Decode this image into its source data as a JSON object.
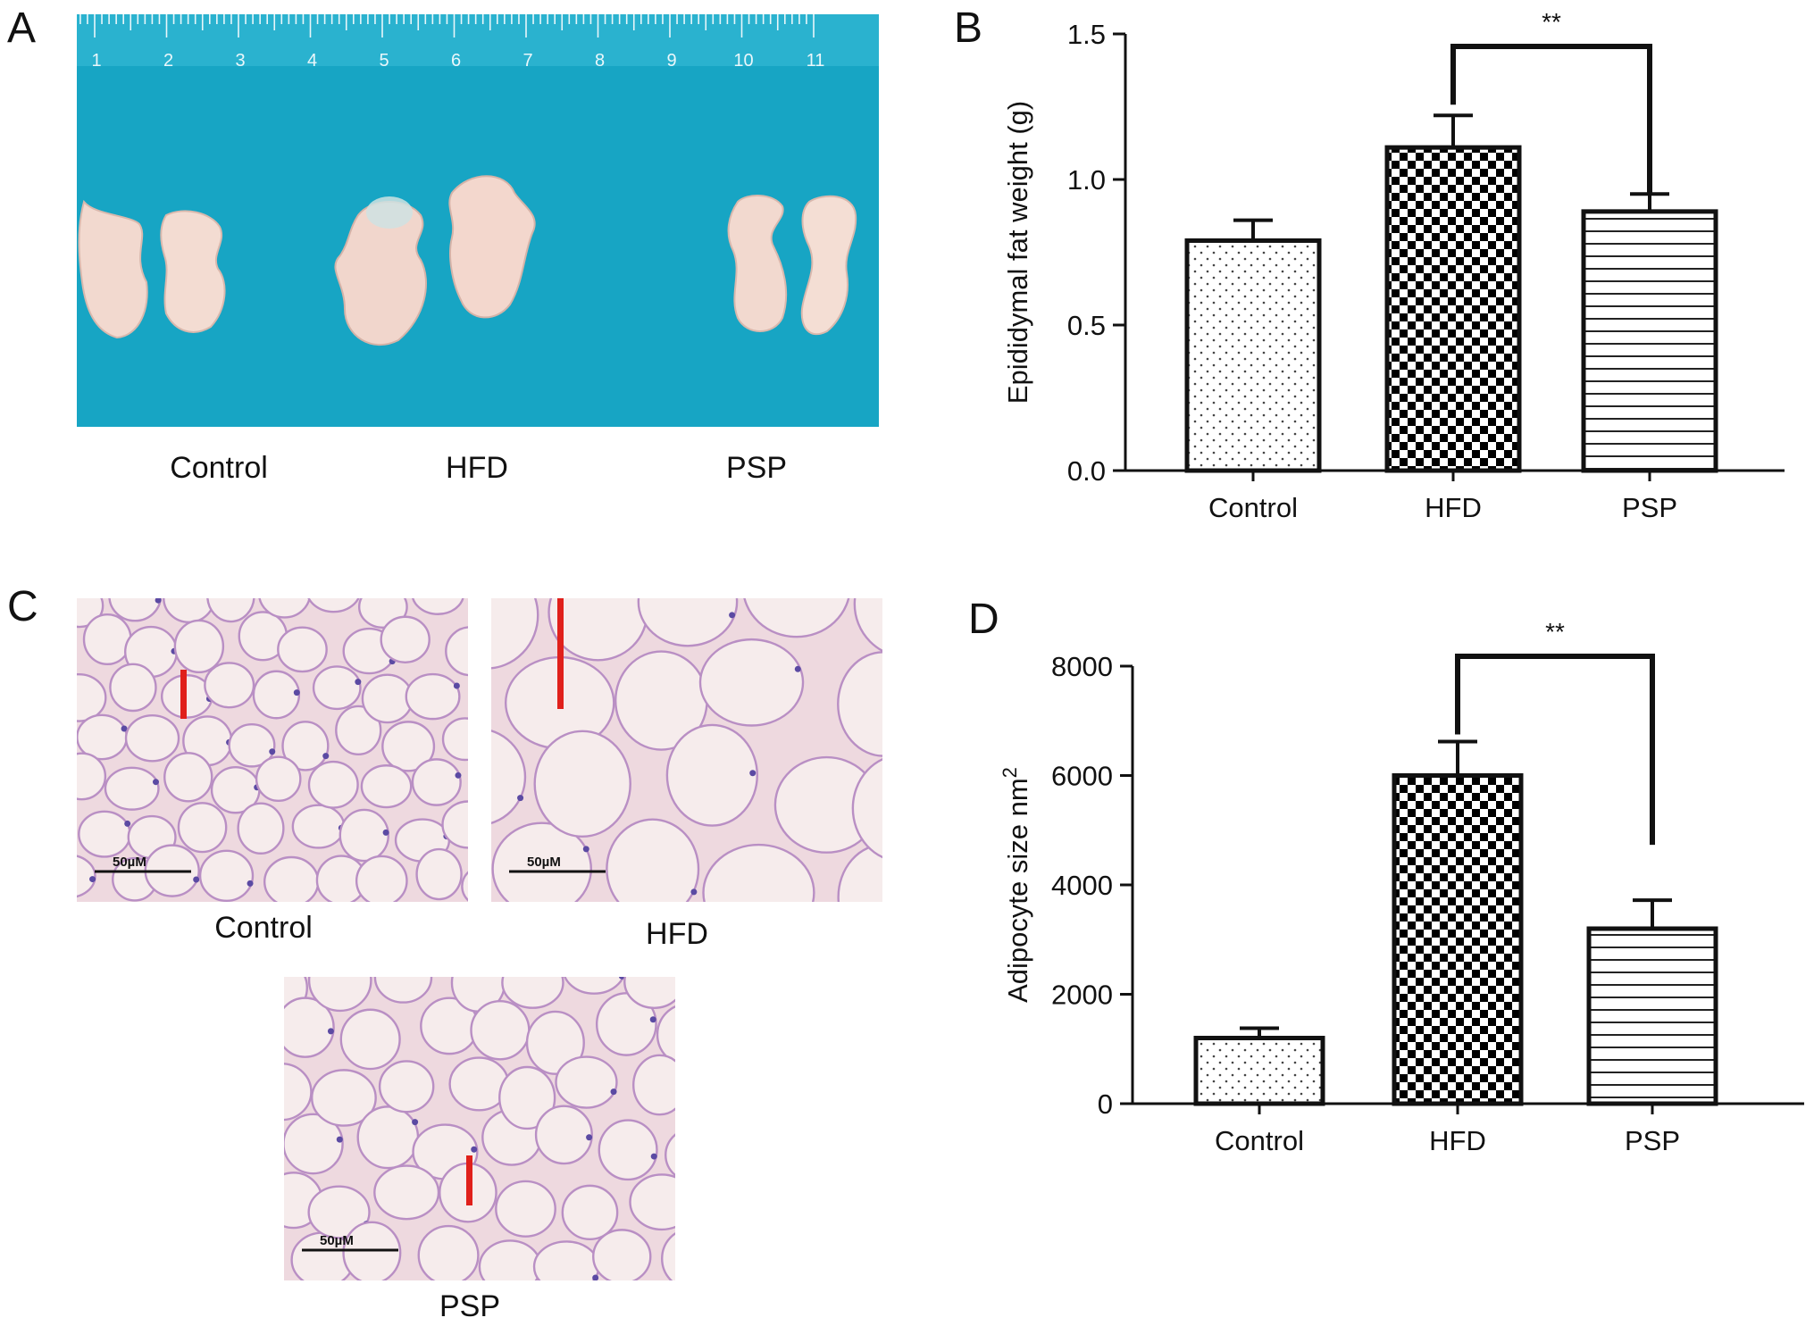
{
  "panels": {
    "a": {
      "letter": "A",
      "ruler_numbers": [
        "1",
        "2",
        "3",
        "4",
        "5",
        "6",
        "7",
        "8",
        "9",
        "10",
        "11"
      ],
      "captions": [
        "Control",
        "HFD",
        "PSP"
      ],
      "colors": {
        "background": "#1aa6c4",
        "tissue": "#f1d8cf"
      }
    },
    "b": {
      "letter": "B"
    },
    "c": {
      "letter": "C",
      "captions": {
        "control": "Control",
        "hfd": "HFD",
        "psp": "PSP"
      },
      "scale_label": "50µM",
      "colors": {
        "tissue_bg": "#eed9df",
        "cell": "#f6ecec",
        "membrane": "#b98fc4",
        "nucleus": "#5b4aa3",
        "marker": "#e0201b"
      }
    },
    "d": {
      "letter": "D"
    }
  },
  "chart_data": [
    {
      "type": "bar",
      "panel": "B",
      "categories": [
        "Control",
        "HFD",
        "PSP"
      ],
      "values": [
        0.79,
        1.11,
        0.89
      ],
      "errors": [
        0.07,
        0.11,
        0.06
      ],
      "patterns": [
        "dots",
        "checker",
        "horizontal-lines"
      ],
      "ylabel": "Epididymal fat weight (g)",
      "ylim": [
        0,
        1.5
      ],
      "yticks": [
        "0.0",
        "0.5",
        "1.0",
        "1.5"
      ],
      "significance": {
        "between": [
          "HFD",
          "PSP"
        ],
        "label": "**"
      }
    },
    {
      "type": "bar",
      "panel": "D",
      "categories": [
        "Control",
        "HFD",
        "PSP"
      ],
      "values": [
        1200,
        6000,
        3200
      ],
      "errors": [
        180,
        620,
        520
      ],
      "patterns": [
        "dots",
        "checker",
        "horizontal-lines"
      ],
      "ylabel": "Adipocyte size nm",
      "ylabel_sup": "2",
      "ylim": [
        0,
        8000
      ],
      "yticks": [
        "0",
        "2000",
        "4000",
        "6000",
        "8000"
      ],
      "significance": {
        "between": [
          "HFD",
          "PSP"
        ],
        "label": "**"
      }
    }
  ]
}
